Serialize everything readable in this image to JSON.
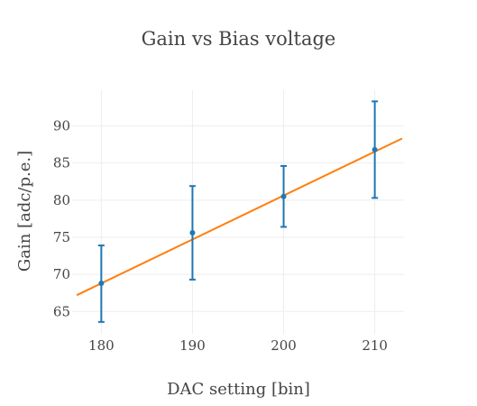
{
  "chart_data": {
    "type": "scatter",
    "title": "Gain vs Bias voltage",
    "xlabel": "DAC setting [bin]",
    "ylabel": "Gain [adc/p.e.]",
    "xlim": [
      176.8,
      213.2
    ],
    "ylim": [
      62,
      94.8
    ],
    "grid": true,
    "legend": "none",
    "x_ticks": [
      180,
      190,
      200,
      210
    ],
    "y_ticks": [
      65,
      70,
      75,
      80,
      85,
      90
    ],
    "series": [
      {
        "mode": "markers+errorbars",
        "color": "#1f77b4",
        "points": [
          {
            "x": 180,
            "y": 68.8,
            "err_low": 63.6,
            "err_high": 73.9
          },
          {
            "x": 190,
            "y": 75.6,
            "err_low": 69.3,
            "err_high": 81.9
          },
          {
            "x": 200,
            "y": 80.5,
            "err_low": 76.4,
            "err_high": 84.6
          },
          {
            "x": 210,
            "y": 86.8,
            "err_low": 80.3,
            "err_high": 93.3
          }
        ]
      },
      {
        "mode": "line",
        "color": "#ff7f0e",
        "points": [
          {
            "x": 177.3,
            "y": 67.2
          },
          {
            "x": 213.0,
            "y": 88.3
          }
        ]
      }
    ]
  }
}
